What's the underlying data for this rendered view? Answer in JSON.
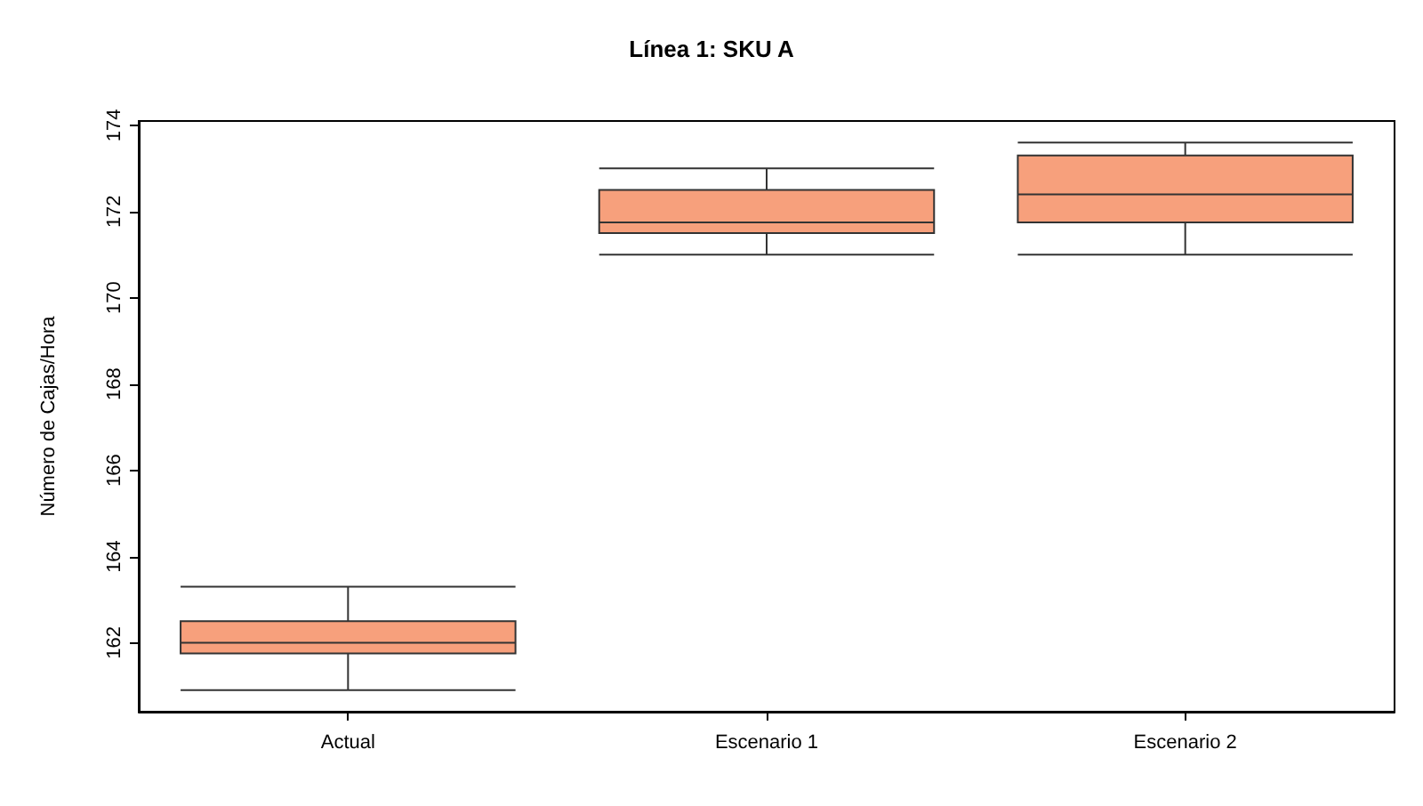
{
  "chart_data": {
    "type": "box",
    "title": "Línea 1: SKU A",
    "ylabel": "Número de Cajas/Hora",
    "categories": [
      "Actual",
      "Escenario 1",
      "Escenario 2"
    ],
    "color": "#f7a07c",
    "ylim": [
      160.4,
      174.1
    ],
    "yticks": [
      162,
      164,
      166,
      168,
      170,
      172,
      174
    ],
    "grid": false,
    "boxes": [
      {
        "low": 160.9,
        "q1": 161.75,
        "median": 162,
        "q3": 162.5,
        "high": 163.3
      },
      {
        "low": 171,
        "q1": 171.5,
        "median": 171.75,
        "q3": 172.5,
        "high": 173
      },
      {
        "low": 171,
        "q1": 171.75,
        "median": 172.4,
        "q3": 173.3,
        "high": 173.6
      }
    ]
  }
}
